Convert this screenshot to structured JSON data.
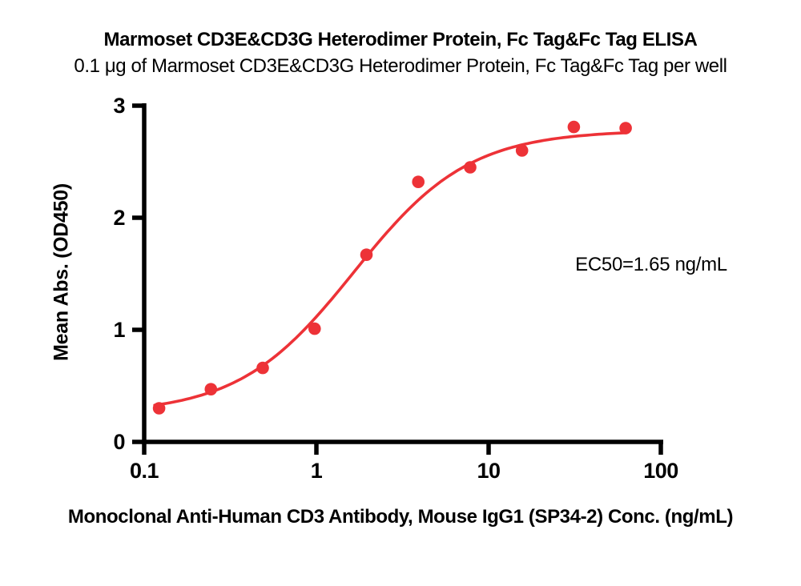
{
  "header": {
    "title": "Marmoset CD3E&CD3G Heterodimer Protein, Fc Tag&Fc Tag ELISA",
    "subtitle": "0.1 μg of Marmoset CD3E&CD3G Heterodimer Protein, Fc Tag&Fc Tag per well"
  },
  "chart_data": {
    "type": "scatter",
    "title": "Marmoset CD3E&CD3G Heterodimer Protein, Fc Tag&Fc Tag ELISA",
    "subtitle": "0.1 μg of Marmoset CD3E&CD3G Heterodimer Protein, Fc Tag&Fc Tag per well",
    "xlabel": "Monoclonal Anti-Human CD3 Antibody, Mouse IgG1 (SP34-2) Conc. (ng/mL)",
    "ylabel": "Mean Abs. (OD450)",
    "annotation": "EC50=1.65 ng/mL",
    "xscale": "log",
    "xlim": [
      0.1,
      100
    ],
    "ylim": [
      0,
      3
    ],
    "xticks": [
      0.1,
      1,
      10,
      100
    ],
    "xtick_labels": [
      "0.1",
      "1",
      "10",
      "100"
    ],
    "yticks": [
      0,
      1,
      2,
      3
    ],
    "ytick_labels": [
      "0",
      "1",
      "2",
      "3"
    ],
    "grid": false,
    "legend": "none",
    "x": [
      0.122,
      0.244,
      0.488,
      0.977,
      1.953,
      3.906,
      7.813,
      15.625,
      31.25,
      62.5
    ],
    "y": [
      0.3,
      0.47,
      0.66,
      1.01,
      1.67,
      2.32,
      2.45,
      2.6,
      2.81,
      2.8
    ],
    "fit": {
      "model": "4PL",
      "bottom": 0.25,
      "top": 2.78,
      "ec50": 1.65,
      "hill": 1.3,
      "curve_range": [
        0.115,
        63
      ]
    },
    "colors": {
      "curve": "#ED3237",
      "points": "#ED3237",
      "axis": "#000000",
      "text": "#000000"
    }
  }
}
